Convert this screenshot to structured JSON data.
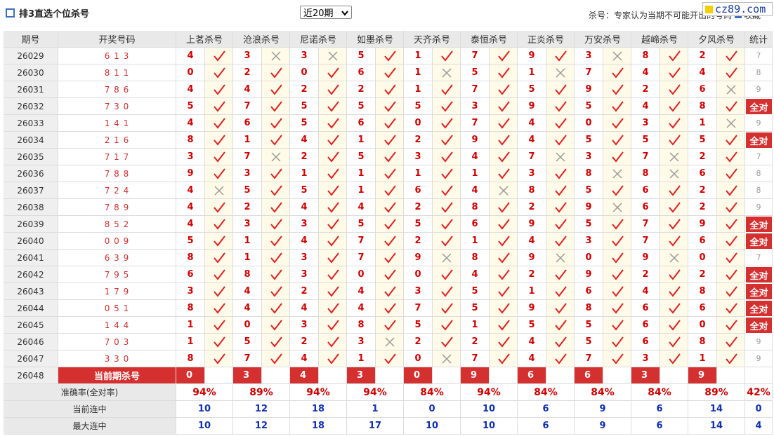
{
  "header": {
    "title": "排3直选个位杀号",
    "select": "近20期",
    "note": "杀号：专家认为当期不可能开出的号码",
    "favorite": "收藏",
    "watermark": "cz89.com"
  },
  "table": {
    "columns": [
      "期号",
      "开奖号码",
      "上茗杀号",
      "沧浪杀号",
      "尼诺杀号",
      "如墨杀号",
      "天齐杀号",
      "泰恒杀号",
      "正炎杀号",
      "万安杀号",
      "越崹杀号",
      "夕风杀号",
      "统计"
    ],
    "rows": [
      {
        "period": 26029,
        "draw": "6 1 3",
        "kills": [
          4,
          3,
          3,
          5,
          1,
          7,
          9,
          3,
          8,
          2
        ],
        "hits": [
          true,
          false,
          false,
          true,
          true,
          true,
          true,
          false,
          true,
          true
        ],
        "stat": 7
      },
      {
        "period": 26030,
        "draw": "8 1 1",
        "kills": [
          0,
          2,
          0,
          6,
          1,
          5,
          1,
          7,
          4,
          4
        ],
        "hits": [
          true,
          true,
          true,
          true,
          false,
          true,
          false,
          true,
          true,
          true
        ],
        "stat": 8
      },
      {
        "period": 26031,
        "draw": "7 8 6",
        "kills": [
          4,
          4,
          2,
          2,
          1,
          7,
          5,
          9,
          2,
          6
        ],
        "hits": [
          true,
          true,
          true,
          true,
          true,
          true,
          true,
          true,
          true,
          false
        ],
        "stat": 9
      },
      {
        "period": 26032,
        "draw": "7 3 0",
        "kills": [
          5,
          7,
          5,
          5,
          5,
          3,
          9,
          5,
          4,
          8
        ],
        "hits": [
          true,
          true,
          true,
          true,
          true,
          true,
          true,
          true,
          true,
          true
        ],
        "stat": "全对"
      },
      {
        "period": 26033,
        "draw": "1 4 1",
        "kills": [
          4,
          6,
          5,
          6,
          0,
          7,
          4,
          0,
          3,
          1
        ],
        "hits": [
          true,
          true,
          true,
          true,
          true,
          true,
          true,
          true,
          true,
          false
        ],
        "stat": 9
      },
      {
        "period": 26034,
        "draw": "2 1 6",
        "kills": [
          8,
          1,
          4,
          1,
          2,
          9,
          4,
          5,
          5,
          5
        ],
        "hits": [
          true,
          true,
          true,
          true,
          true,
          true,
          true,
          true,
          true,
          true
        ],
        "stat": "全对"
      },
      {
        "period": 26035,
        "draw": "7 1 7",
        "kills": [
          3,
          7,
          2,
          5,
          3,
          4,
          7,
          3,
          7,
          2
        ],
        "hits": [
          true,
          false,
          true,
          true,
          true,
          true,
          false,
          true,
          false,
          true
        ],
        "stat": 7
      },
      {
        "period": 26036,
        "draw": "7 8 8",
        "kills": [
          9,
          3,
          1,
          1,
          1,
          1,
          3,
          8,
          8,
          6
        ],
        "hits": [
          true,
          true,
          true,
          true,
          true,
          true,
          true,
          false,
          false,
          true
        ],
        "stat": 8
      },
      {
        "period": 26037,
        "draw": "7 2 4",
        "kills": [
          4,
          5,
          5,
          1,
          6,
          4,
          8,
          5,
          6,
          2
        ],
        "hits": [
          false,
          true,
          true,
          true,
          true,
          false,
          true,
          true,
          true,
          true
        ],
        "stat": 8
      },
      {
        "period": 26038,
        "draw": "7 8 9",
        "kills": [
          4,
          2,
          4,
          4,
          2,
          8,
          2,
          9,
          6,
          2
        ],
        "hits": [
          true,
          true,
          true,
          true,
          true,
          true,
          true,
          false,
          true,
          true
        ],
        "stat": 9
      },
      {
        "period": 26039,
        "draw": "8 5 2",
        "kills": [
          4,
          3,
          3,
          5,
          5,
          6,
          9,
          5,
          7,
          9
        ],
        "hits": [
          true,
          true,
          true,
          true,
          true,
          true,
          true,
          true,
          true,
          true
        ],
        "stat": "全对"
      },
      {
        "period": 26040,
        "draw": "0 0 9",
        "kills": [
          5,
          1,
          4,
          7,
          2,
          1,
          4,
          3,
          7,
          6
        ],
        "hits": [
          true,
          true,
          true,
          true,
          true,
          true,
          true,
          true,
          true,
          true
        ],
        "stat": "全对"
      },
      {
        "period": 26041,
        "draw": "6 3 9",
        "kills": [
          8,
          1,
          3,
          7,
          9,
          8,
          9,
          0,
          9,
          0
        ],
        "hits": [
          true,
          true,
          true,
          true,
          false,
          true,
          false,
          true,
          false,
          true
        ],
        "stat": 7
      },
      {
        "period": 26042,
        "draw": "7 9 5",
        "kills": [
          6,
          8,
          3,
          0,
          0,
          4,
          2,
          9,
          2,
          2
        ],
        "hits": [
          true,
          true,
          true,
          true,
          true,
          true,
          true,
          true,
          true,
          true
        ],
        "stat": "全对"
      },
      {
        "period": 26043,
        "draw": "1 7 9",
        "kills": [
          3,
          4,
          2,
          4,
          3,
          5,
          1,
          6,
          4,
          8
        ],
        "hits": [
          true,
          true,
          true,
          true,
          true,
          true,
          true,
          true,
          true,
          true
        ],
        "stat": "全对"
      },
      {
        "period": 26044,
        "draw": "0 5 1",
        "kills": [
          8,
          4,
          4,
          4,
          7,
          5,
          9,
          8,
          6,
          6
        ],
        "hits": [
          true,
          true,
          true,
          true,
          true,
          true,
          true,
          true,
          true,
          true
        ],
        "stat": "全对"
      },
      {
        "period": 26045,
        "draw": "1 4 4",
        "kills": [
          1,
          0,
          3,
          8,
          5,
          1,
          5,
          5,
          6,
          0
        ],
        "hits": [
          true,
          true,
          true,
          true,
          true,
          true,
          true,
          true,
          true,
          true
        ],
        "stat": "全对"
      },
      {
        "period": 26046,
        "draw": "7 0 3",
        "kills": [
          1,
          5,
          2,
          3,
          2,
          2,
          4,
          5,
          6,
          8
        ],
        "hits": [
          true,
          true,
          true,
          false,
          true,
          true,
          true,
          true,
          true,
          true
        ],
        "stat": 9
      },
      {
        "period": 26047,
        "draw": "3 3 0",
        "kills": [
          8,
          7,
          4,
          1,
          0,
          7,
          4,
          7,
          3,
          1
        ],
        "hits": [
          true,
          true,
          true,
          true,
          false,
          true,
          true,
          true,
          true,
          true
        ],
        "stat": 9
      }
    ],
    "current": {
      "period": 26048,
      "label": "当前期杀号",
      "kills": [
        0,
        3,
        4,
        3,
        0,
        9,
        6,
        6,
        3,
        9
      ]
    },
    "summary": [
      {
        "label": "准确率(全对率)",
        "values": [
          "94%",
          "89%",
          "94%",
          "94%",
          "84%",
          "94%",
          "84%",
          "84%",
          "84%",
          "89%",
          "42%"
        ]
      },
      {
        "label": "当前连中",
        "values": [
          10,
          12,
          18,
          1,
          0,
          10,
          6,
          9,
          6,
          14,
          0
        ]
      },
      {
        "label": "最大连中",
        "values": [
          10,
          12,
          18,
          17,
          10,
          10,
          6,
          9,
          6,
          14,
          4
        ]
      }
    ]
  }
}
